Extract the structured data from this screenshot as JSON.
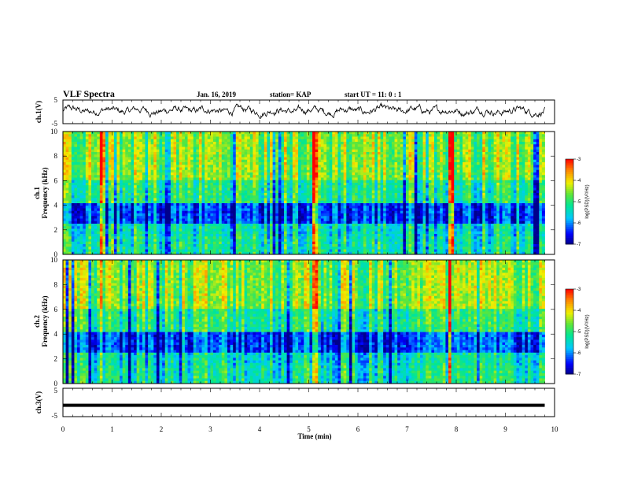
{
  "header": {
    "title": "VLF Spectra",
    "date": "Jan. 16, 2019",
    "station": "station= KAP",
    "start": "start  UT =   11: 0  : 1"
  },
  "chart_data": [
    {
      "type": "line",
      "panel": "ch1-waveform",
      "ylabel": "ch.1(V)",
      "ylim": [
        -5,
        5
      ],
      "yticks": [
        "5",
        "-5"
      ],
      "x_range_min": [
        0,
        9.8
      ],
      "description_free": true
    },
    {
      "type": "heatmap",
      "panel": "ch1-spectrogram",
      "ylabel": "ch.1\nFrequency  (kHz)",
      "ylim": [
        0,
        10
      ],
      "yticks": [
        "0",
        "2",
        "4",
        "6",
        "8",
        "10"
      ],
      "colorbar": {
        "label": "log(PSD)(V²/Hz)",
        "range": [
          -7,
          -3
        ],
        "ticks": [
          "-3",
          "-4",
          "-5",
          "-6",
          "-7"
        ]
      },
      "notable_broadband_minutes": [
        0.82,
        5.15,
        7.9
      ]
    },
    {
      "type": "heatmap",
      "panel": "ch2-spectrogram",
      "ylabel": "ch.2\nFrequency  (kHz)",
      "ylim": [
        0,
        10
      ],
      "yticks": [
        "0",
        "2",
        "4",
        "6",
        "8",
        "10"
      ],
      "colorbar": {
        "label": "log(PSD)(V²/Hz)",
        "range": [
          -7,
          -3
        ],
        "ticks": [
          "-3",
          "-4",
          "-5",
          "-6",
          "-7"
        ]
      },
      "notable_broadband_minutes": [
        0.82,
        5.15,
        7.9
      ]
    },
    {
      "type": "line",
      "panel": "ch3-waveform",
      "ylabel": "ch.3(V)",
      "ylim": [
        -5,
        5
      ],
      "yticks": [
        "5",
        "-5"
      ],
      "level": -1
    }
  ],
  "xaxis": {
    "label": "Time  (min)",
    "range": [
      0,
      10
    ],
    "ticks": [
      "0",
      "1",
      "2",
      "3",
      "4",
      "5",
      "6",
      "7",
      "8",
      "9",
      "10"
    ]
  },
  "colors": {
    "spectral_low": "#0000c8",
    "spectral_mid": "#00e6a0",
    "spectral_high": "#ff1010",
    "trace": "#000000"
  }
}
